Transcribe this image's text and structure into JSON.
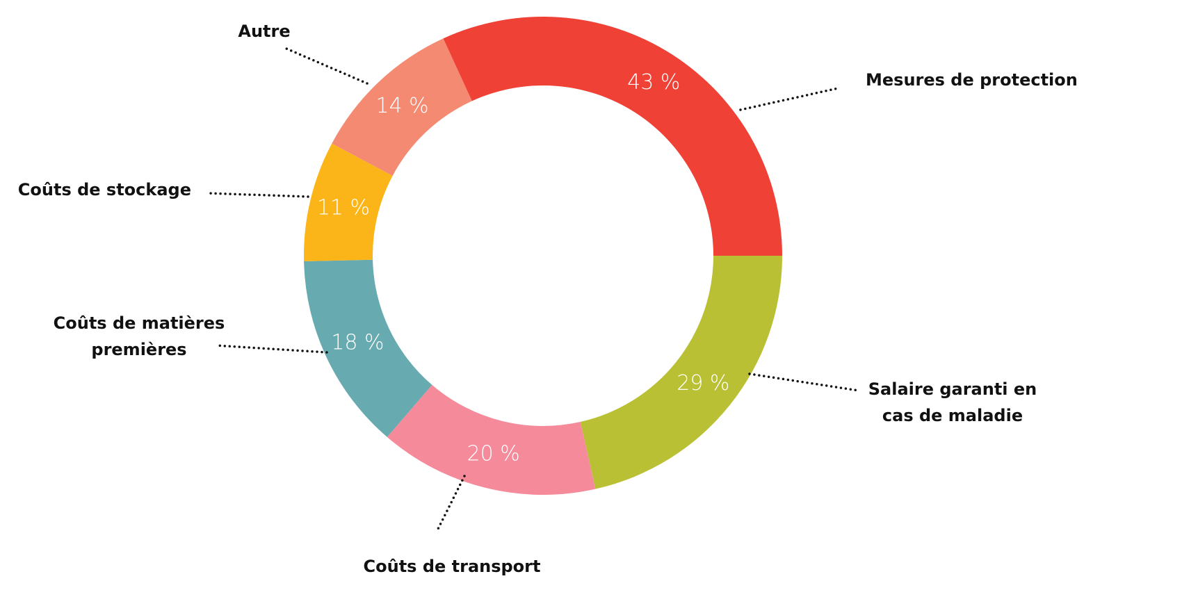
{
  "chart_data": {
    "type": "donut",
    "categories": [
      "Mesures de protection",
      "Salaire garanti en cas de maladie",
      "Coûts de transport",
      "Coûts de matières premières",
      "Coûts de stockage",
      "Autre"
    ],
    "values": [
      43,
      29,
      20,
      18,
      11,
      14
    ],
    "value_labels": [
      "43 %",
      "29 %",
      "20 %",
      "18 %",
      "11 %",
      "14 %"
    ],
    "colors": [
      "#ef4136",
      "#b9c033",
      "#f48a9a",
      "#67aab0",
      "#fbb518",
      "#f58a72"
    ]
  }
}
